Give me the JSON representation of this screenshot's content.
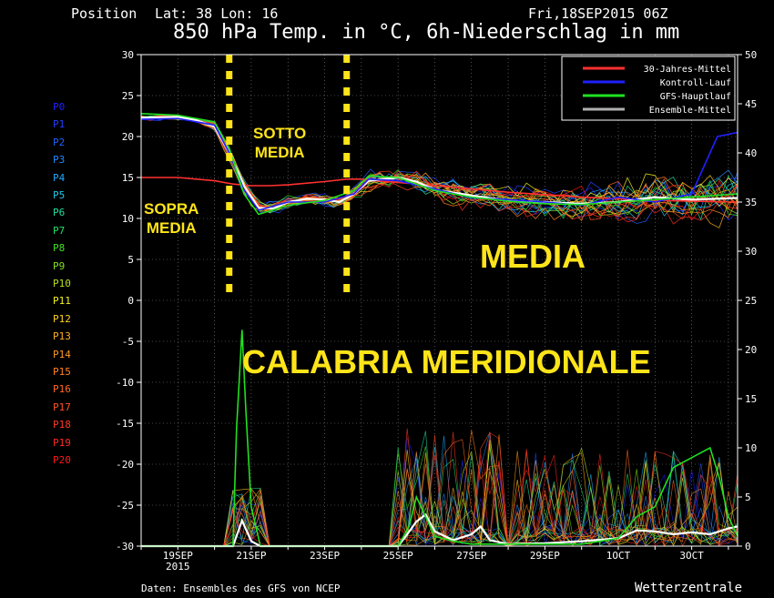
{
  "header": {
    "position_label": "Position",
    "lat_lon": "Lat: 38 Lon: 16",
    "datetime": "Fri,18SEP2015 06Z"
  },
  "footer": {
    "source": "Daten: Ensembles des GFS von NCEP",
    "brand": "Wetterzentrale"
  },
  "annotations": {
    "sopra_media": "SOPRA\nMEDIA",
    "sotto_media": "SOTTO\nMEDIA",
    "media": "MEDIA",
    "region": "CALABRIA MERIDIONALE"
  },
  "ensemble_members": [
    {
      "name": "P0",
      "color": "#2020ff"
    },
    {
      "name": "P1",
      "color": "#2040ff"
    },
    {
      "name": "P2",
      "color": "#2060ff"
    },
    {
      "name": "P3",
      "color": "#2088ff"
    },
    {
      "name": "P4",
      "color": "#20a8ff"
    },
    {
      "name": "P5",
      "color": "#20c8e8"
    },
    {
      "name": "P6",
      "color": "#20e0a0"
    },
    {
      "name": "P7",
      "color": "#20e060"
    },
    {
      "name": "P8",
      "color": "#40e020"
    },
    {
      "name": "P9",
      "color": "#80e020"
    },
    {
      "name": "P10",
      "color": "#b8e020"
    },
    {
      "name": "P11",
      "color": "#f0f020"
    },
    {
      "name": "P12",
      "color": "#ffd020"
    },
    {
      "name": "P13",
      "color": "#ffb020"
    },
    {
      "name": "P14",
      "color": "#ff9820"
    },
    {
      "name": "P15",
      "color": "#ff8020"
    },
    {
      "name": "P16",
      "color": "#ff6820"
    },
    {
      "name": "P17",
      "color": "#ff5020"
    },
    {
      "name": "P18",
      "color": "#ff3820"
    },
    {
      "name": "P19",
      "color": "#ff2820"
    },
    {
      "name": "P20",
      "color": "#ff1818"
    }
  ],
  "chart_data": {
    "type": "line",
    "title": "850 hPa Temp. in °C, 6h-Niederschlag in mm",
    "x_ticks": [
      {
        "label": "19SEP",
        "sub": "2015",
        "day": 1
      },
      {
        "label": "21SEP",
        "sub": "",
        "day": 3
      },
      {
        "label": "23SEP",
        "sub": "",
        "day": 5
      },
      {
        "label": "25SEP",
        "sub": "",
        "day": 7
      },
      {
        "label": "27SEP",
        "sub": "",
        "day": 9
      },
      {
        "label": "29SEP",
        "sub": "",
        "day": 11
      },
      {
        "label": "1OCT",
        "sub": "",
        "day": 13
      },
      {
        "label": "3OCT",
        "sub": "",
        "day": 15
      }
    ],
    "x_range": [
      0,
      16.25
    ],
    "y_left": {
      "min": -30,
      "max": 30,
      "ticks": [
        30,
        25,
        20,
        15,
        10,
        5,
        0,
        -5,
        -10,
        -15,
        -20,
        -25,
        -30
      ]
    },
    "y_right": {
      "min": 0,
      "max": 50,
      "ticks": [
        50,
        45,
        40,
        35,
        30,
        25,
        20,
        15,
        10,
        5,
        0
      ]
    },
    "grid": true,
    "legend_position": "top-right",
    "legend": [
      {
        "name": "30-Jahres-Mittel",
        "color": "#ff3030"
      },
      {
        "name": "Kontroll-Lauf",
        "color": "#2020ff"
      },
      {
        "name": "GFS-Hauptlauf",
        "color": "#20e020"
      },
      {
        "name": "Ensemble-Mittel",
        "color": "#b0b0b0"
      }
    ],
    "divider_days": [
      2.4,
      5.6
    ],
    "series": [
      {
        "name": "30-Jahres-Mittel",
        "color": "#ff3030",
        "axis": "left",
        "x": [
          0,
          1,
          2,
          2.5,
          3,
          3.5,
          4,
          5,
          5.6,
          6,
          7,
          8,
          10,
          12,
          14,
          16.25
        ],
        "y": [
          15,
          15,
          14.6,
          14.2,
          14,
          14,
          14.1,
          14.5,
          14.8,
          14.8,
          14.4,
          14,
          13.2,
          12.6,
          12.2,
          12
        ]
      },
      {
        "name": "Ensemble-Mittel",
        "color": "#ffffff",
        "axis": "left",
        "x": [
          0,
          1,
          1.5,
          2,
          2.4,
          2.8,
          3.2,
          3.6,
          4,
          4.5,
          5,
          5.4,
          5.8,
          6.2,
          7,
          7.5,
          8,
          9,
          10,
          11,
          12,
          13,
          14,
          15,
          16.25
        ],
        "y": [
          22.3,
          22.4,
          22,
          21.2,
          18,
          14,
          11.3,
          11.2,
          12,
          12.4,
          12.3,
          12,
          13,
          14.6,
          15,
          14.5,
          13.5,
          12.8,
          12.2,
          12,
          11.8,
          12,
          12.6,
          12.3,
          12.5
        ]
      },
      {
        "name": "Kontroll-Lauf",
        "color": "#2020ff",
        "axis": "left",
        "x": [
          0,
          1,
          2,
          2.4,
          2.8,
          3.2,
          4,
          5,
          5.8,
          6.2,
          7,
          8,
          9,
          10,
          11,
          12,
          13,
          14,
          15,
          15.7,
          16.25
        ],
        "y": [
          22.1,
          22.2,
          21.4,
          18,
          13.5,
          11,
          12,
          12,
          13,
          14.8,
          14.6,
          13.6,
          12.5,
          12.3,
          12,
          11.6,
          12.6,
          12,
          13,
          20,
          20.5
        ]
      },
      {
        "name": "GFS-Hauptlauf",
        "color": "#20e020",
        "axis": "left",
        "x": [
          0,
          1,
          2,
          2.4,
          2.8,
          3.2,
          4,
          5,
          5.8,
          6.2,
          7,
          8,
          9,
          10,
          11,
          12,
          13,
          14,
          15,
          16.25
        ],
        "y": [
          22.8,
          22.6,
          21.8,
          18.6,
          13,
          10.5,
          11.6,
          12.2,
          13.4,
          15.2,
          15,
          13.4,
          12.6,
          12.1,
          11.8,
          11.7,
          12,
          12.3,
          12.6,
          13
        ]
      },
      {
        "name": "Ensemble-Mittel Niederschlag",
        "color": "#ffffff",
        "axis": "right",
        "x": [
          0,
          2.5,
          2.75,
          3,
          3.25,
          7,
          7.25,
          7.5,
          7.75,
          8,
          8.5,
          9,
          9.25,
          9.5,
          10,
          11,
          12,
          13,
          13.5,
          14,
          14.5,
          15,
          15.5,
          16,
          16.25
        ],
        "y": [
          0,
          0,
          2.6,
          0.5,
          0,
          0,
          1.2,
          2.5,
          3.2,
          1.5,
          0.6,
          1.2,
          2,
          0.6,
          0.2,
          0.3,
          0.5,
          0.8,
          1.6,
          1.5,
          1.2,
          1.4,
          1.2,
          1.8,
          2
        ]
      },
      {
        "name": "GFS-Hauptlauf Niederschlag",
        "color": "#20e020",
        "axis": "right",
        "x": [
          0,
          2.5,
          2.6,
          2.75,
          2.85,
          3,
          3.25,
          7,
          7.3,
          7.5,
          7.75,
          8,
          8.5,
          9,
          12,
          13,
          13.5,
          14,
          14.5,
          15,
          15.5,
          15.75,
          16,
          16.25
        ],
        "y": [
          0,
          0,
          12,
          22,
          14,
          4,
          0,
          0,
          2,
          5,
          3,
          1,
          0.5,
          0.2,
          0.2,
          0.8,
          3,
          4,
          8,
          9,
          10,
          7,
          3,
          1
        ]
      }
    ]
  }
}
